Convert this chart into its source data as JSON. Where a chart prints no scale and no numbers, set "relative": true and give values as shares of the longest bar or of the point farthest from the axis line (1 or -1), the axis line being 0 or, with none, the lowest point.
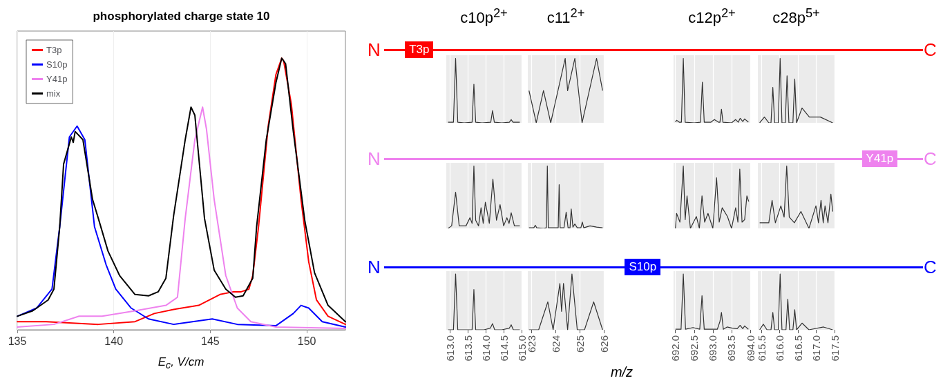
{
  "chart_data": [
    {
      "type": "line",
      "title": "phosphorylated charge state 10",
      "xlabel": "E$_{c}$, V/cm",
      "relative": true,
      "xlim": [
        135,
        152
      ],
      "xticks": [
        135,
        140,
        145,
        150
      ],
      "grid": true,
      "legend": "top left",
      "series": [
        {
          "name": "T3p",
          "color": "#ff0000",
          "x": [
            135,
            136.5,
            139.2,
            141.1,
            142.1,
            143.1,
            144.4,
            145.5,
            146.2,
            146.6,
            147.0,
            147.2,
            147.5,
            148.0,
            148.4,
            148.7,
            148.8,
            149.2,
            149.7,
            150.1,
            150.5,
            151.1,
            152
          ],
          "values": [
            0.03,
            0.03,
            0.02,
            0.03,
            0.06,
            0.075,
            0.09,
            0.13,
            0.14,
            0.14,
            0.15,
            0.2,
            0.38,
            0.75,
            0.94,
            1.0,
            0.99,
            0.83,
            0.48,
            0.25,
            0.11,
            0.05,
            0.02
          ]
        },
        {
          "name": "S10p",
          "color": "#0000ff",
          "x": [
            135,
            136.0,
            136.8,
            137.2,
            137.7,
            138.1,
            138.5,
            139.0,
            139.6,
            140.1,
            140.9,
            141.8,
            143.1,
            145.1,
            146.4,
            148.4,
            149.3,
            149.7,
            150.1,
            150.8,
            152
          ],
          "values": [
            0.05,
            0.08,
            0.15,
            0.38,
            0.71,
            0.75,
            0.7,
            0.38,
            0.24,
            0.15,
            0.08,
            0.04,
            0.02,
            0.04,
            0.02,
            0.015,
            0.06,
            0.09,
            0.08,
            0.03,
            0.01
          ]
        },
        {
          "name": "Y41p",
          "color": "#ee82ee",
          "x": [
            135,
            136.9,
            138.2,
            139.4,
            141.1,
            142.7,
            143.3,
            143.7,
            144.2,
            144.6,
            144.8,
            145.2,
            145.8,
            146.4,
            147.1,
            148.4,
            152
          ],
          "values": [
            0.01,
            0.02,
            0.05,
            0.05,
            0.07,
            0.09,
            0.12,
            0.41,
            0.7,
            0.82,
            0.74,
            0.48,
            0.2,
            0.08,
            0.03,
            0.01,
            0.005
          ]
        },
        {
          "name": "mix",
          "color": "#000000",
          "x": [
            135,
            135.8,
            136.6,
            136.9,
            137.2,
            137.4,
            137.8,
            137.9,
            138.0,
            138.4,
            138.9,
            139.2,
            139.7,
            140.3,
            141.1,
            141.8,
            142.3,
            142.7,
            143.1,
            143.7,
            144.0,
            144.2,
            144.7,
            145.2,
            145.8,
            146.3,
            146.7,
            147.2,
            147.4,
            147.9,
            148.4,
            148.7,
            148.9,
            149.3,
            149.9,
            150.4,
            151.1,
            152
          ],
          "values": [
            0.05,
            0.07,
            0.11,
            0.15,
            0.38,
            0.61,
            0.71,
            0.69,
            0.73,
            0.7,
            0.48,
            0.41,
            0.29,
            0.2,
            0.13,
            0.125,
            0.14,
            0.19,
            0.42,
            0.7,
            0.82,
            0.79,
            0.41,
            0.22,
            0.15,
            0.12,
            0.125,
            0.19,
            0.38,
            0.7,
            0.91,
            1.0,
            0.98,
            0.73,
            0.4,
            0.21,
            0.09,
            0.03
          ]
        }
      ]
    },
    {
      "type": "line",
      "title": "c10p$^{2+}$",
      "annotations": [
        "N",
        "T3p",
        "C"
      ],
      "relative": true,
      "color": "#333333",
      "grid": true,
      "tick_labels": false,
      "xlim": [
        612.9,
        615.0
      ],
      "xticks": [
        613,
        613.5,
        614,
        614.5,
        615
      ],
      "x": [
        612.95,
        613.1,
        613.16,
        613.22,
        613.4,
        613.62,
        613.67,
        613.72,
        613.9,
        614.14,
        614.19,
        614.24,
        614.45,
        614.66,
        614.71,
        614.76,
        614.95
      ],
      "values": [
        0.01,
        0.01,
        1.0,
        0.01,
        0.0,
        0.01,
        0.6,
        0.01,
        0.0,
        0.01,
        0.19,
        0.01,
        0.0,
        0.01,
        0.05,
        0.01,
        0.01
      ]
    },
    {
      "type": "line",
      "title": "c11$^{2+}$",
      "relative": true,
      "color": "#333333",
      "grid": true,
      "tick_labels": false,
      "xlim": [
        622.85,
        626.0
      ],
      "xticks": [
        623,
        624,
        625,
        626
      ],
      "x": [
        622.9,
        623.2,
        623.5,
        623.8,
        624.1,
        624.4,
        624.5,
        624.8,
        625.1,
        625.4,
        625.7,
        625.95
      ],
      "values": [
        0.5,
        0,
        0.5,
        0,
        0.5,
        1,
        0.5,
        1,
        0,
        0.5,
        1,
        0.5
      ]
    },
    {
      "type": "line",
      "title": "c12p$^{2+}$",
      "relative": true,
      "color": "#333333",
      "grid": true,
      "tick_labels": false,
      "xlim": [
        691.95,
        694.0
      ],
      "xticks": [
        692,
        692.5,
        693,
        693.5,
        694
      ],
      "x": [
        692.0,
        692.03,
        692.1,
        692.16,
        692.21,
        692.26,
        692.5,
        692.67,
        692.72,
        692.77,
        692.95,
        693.04,
        693.15,
        693.19,
        693.23,
        693.27,
        693.5,
        693.61,
        693.68,
        693.73,
        693.8,
        693.85,
        693.95
      ],
      "values": [
        0.01,
        0.04,
        0.01,
        0.01,
        1,
        0.01,
        0,
        0.01,
        0.63,
        0.01,
        0.01,
        0.05,
        0.01,
        0.01,
        0.21,
        0.01,
        0,
        0.05,
        0.01,
        0.07,
        0.02,
        0.06,
        0.01
      ]
    },
    {
      "type": "line",
      "title": "c28p$^{5+}$",
      "relative": true,
      "color": "#333333",
      "grid": true,
      "tick_labels": false,
      "xlim": [
        615.4,
        617.5
      ],
      "xticks": [
        615.5,
        616,
        616.5,
        617,
        617.5
      ],
      "x": [
        615.45,
        615.58,
        615.7,
        615.76,
        615.81,
        615.86,
        615.91,
        615.96,
        616.01,
        616.06,
        616.11,
        616.15,
        616.2,
        616.25,
        616.32,
        616.36,
        616.41,
        616.46,
        616.61,
        616.81,
        617.11,
        617.45
      ],
      "values": [
        0,
        0.09,
        0,
        0,
        0.55,
        0,
        0,
        0,
        1,
        0,
        0,
        0,
        0.73,
        0,
        0,
        0,
        0.68,
        0,
        0.23,
        0.09,
        0.09,
        0
      ]
    },
    {
      "type": "line",
      "annotations": [
        "N",
        "Y41p",
        "C"
      ],
      "relative": true,
      "color": "#333333",
      "grid": true,
      "tick_labels": false,
      "xlim": [
        612.9,
        615.0
      ],
      "xticks": [
        613,
        613.5,
        614,
        614.5,
        615
      ],
      "x": [
        612.95,
        613.05,
        613.16,
        613.26,
        613.45,
        613.56,
        613.62,
        613.67,
        613.72,
        613.8,
        613.87,
        613.93,
        613.99,
        614.1,
        614.2,
        614.3,
        614.4,
        614.5,
        614.59,
        614.65,
        614.71,
        614.8,
        614.95
      ],
      "values": [
        0,
        0.04,
        0.58,
        0.04,
        0.04,
        0.17,
        0.08,
        1,
        0.13,
        0.04,
        0.33,
        0.08,
        0.42,
        0.08,
        0.79,
        0.13,
        0.38,
        0.04,
        0.17,
        0.08,
        0.25,
        0.04,
        0.04
      ]
    },
    {
      "type": "line",
      "relative": true,
      "color": "#333333",
      "grid": true,
      "tick_labels": false,
      "xlim": [
        622.85,
        626.0
      ],
      "xticks": [
        623,
        624,
        625,
        626
      ],
      "x": [
        622.9,
        623.1,
        623.16,
        623.22,
        623.5,
        623.62,
        623.66,
        623.7,
        624.0,
        624.11,
        624.15,
        624.19,
        624.35,
        624.44,
        624.52,
        624.6,
        624.65,
        624.72,
        624.8,
        624.9,
        625.05,
        625.11,
        625.17,
        625.43,
        625.7,
        625.95
      ],
      "values": [
        0.01,
        0.01,
        0.05,
        0.01,
        0.0,
        0.01,
        1.0,
        0.01,
        0.01,
        0.01,
        0.7,
        0.01,
        0.01,
        0.26,
        0.01,
        0.01,
        0.31,
        0.02,
        0.07,
        0.01,
        0.01,
        0.1,
        0.01,
        0.04,
        0.02,
        0.01
      ]
    },
    {
      "type": "line",
      "relative": true,
      "color": "#333333",
      "grid": true,
      "tick_labels": false,
      "xlim": [
        691.95,
        694.0
      ],
      "xticks": [
        692,
        692.5,
        693,
        693.5,
        694
      ],
      "x": [
        692.0,
        692.03,
        692.12,
        692.21,
        692.26,
        692.31,
        692.4,
        692.56,
        692.64,
        692.71,
        692.78,
        692.87,
        693.0,
        693.1,
        693.17,
        693.25,
        693.39,
        693.5,
        693.61,
        693.67,
        693.72,
        693.78,
        693.85,
        693.91,
        693.96
      ],
      "values": [
        0,
        0.24,
        0.1,
        1,
        0.14,
        0.52,
        0,
        0.19,
        0,
        0.52,
        0.1,
        0.24,
        0,
        0.81,
        0.1,
        0.33,
        0.19,
        0,
        0.33,
        0.1,
        0.95,
        0.1,
        0.14,
        0.52,
        0.43
      ]
    },
    {
      "type": "line",
      "relative": true,
      "color": "#333333",
      "grid": true,
      "tick_labels": false,
      "xlim": [
        615.4,
        617.5
      ],
      "xticks": [
        615.5,
        616,
        616.5,
        617,
        617.5
      ],
      "x": [
        615.45,
        615.7,
        615.79,
        615.88,
        616.03,
        616.12,
        616.19,
        616.26,
        616.4,
        616.58,
        616.8,
        616.99,
        617.06,
        617.13,
        617.19,
        617.24,
        617.32,
        617.4,
        617.45
      ],
      "values": [
        0.09,
        0.09,
        0.45,
        0.09,
        0.36,
        0.18,
        1,
        0.18,
        0.09,
        0.27,
        0,
        0.36,
        0.09,
        0.45,
        0.09,
        0.36,
        0.09,
        0.55,
        0.27
      ]
    },
    {
      "type": "line",
      "annotations": [
        "N",
        "S10p",
        "C"
      ],
      "relative": true,
      "color": "#333333",
      "grid": true,
      "tick_labels": "x",
      "xlim": [
        612.9,
        615.0
      ],
      "xticks": [
        {
          "value": 613,
          "label": "613.0"
        },
        613.5,
        {
          "value": 614,
          "label": "614.0"
        },
        614.5,
        {
          "value": 615,
          "label": "615.0"
        }
      ],
      "x": [
        612.95,
        613.1,
        613.16,
        613.22,
        613.4,
        613.62,
        613.67,
        613.72,
        613.95,
        614.13,
        614.19,
        614.25,
        614.45,
        614.66,
        614.71,
        614.77,
        614.95
      ],
      "values": [
        0,
        0,
        1,
        0,
        0,
        0,
        0.72,
        0,
        0,
        0.03,
        0.11,
        0,
        0,
        0.03,
        0.09,
        0,
        0
      ]
    },
    {
      "type": "line",
      "xlabel": "m/z",
      "relative": true,
      "color": "#333333",
      "grid": true,
      "tick_labels": "x",
      "xlim": [
        622.85,
        626.0
      ],
      "xticks": [
        623,
        624,
        625,
        626
      ],
      "x": [
        622.9,
        623.3,
        623.68,
        623.9,
        624.18,
        624.25,
        624.33,
        624.5,
        624.68,
        624.9,
        625.2,
        625.58,
        625.95
      ],
      "values": [
        0,
        0,
        0.5,
        0,
        0.83,
        0.33,
        0.83,
        0,
        1,
        0,
        0,
        0.5,
        0
      ]
    },
    {
      "type": "line",
      "relative": true,
      "color": "#333333",
      "grid": true,
      "tick_labels": "x",
      "xlim": [
        691.95,
        694.0
      ],
      "xticks": [
        {
          "value": 692,
          "label": "692.0"
        },
        692.5,
        {
          "value": 693,
          "label": "693.0"
        },
        693.5,
        {
          "value": 694,
          "label": "694.0"
        }
      ],
      "x": [
        692.0,
        692.15,
        692.21,
        692.27,
        692.47,
        692.65,
        692.71,
        692.77,
        693.12,
        693.19,
        693.23,
        693.28,
        693.38,
        693.52,
        693.65,
        693.73,
        693.8,
        693.85,
        693.95
      ],
      "values": [
        0.01,
        0.01,
        1.0,
        0.01,
        0.04,
        0.01,
        0.61,
        0.01,
        0.01,
        0.15,
        0.31,
        0.01,
        0.05,
        0.03,
        0.02,
        0.08,
        0.02,
        0.07,
        0.01
      ]
    },
    {
      "type": "line",
      "relative": true,
      "color": "#333333",
      "grid": true,
      "tick_labels": "x",
      "xlim": [
        615.4,
        617.5
      ],
      "xticks": [
        615.5,
        {
          "value": 616,
          "label": "616.0"
        },
        616.5,
        {
          "value": 617,
          "label": "617.0"
        },
        617.5
      ],
      "x": [
        615.45,
        615.55,
        615.65,
        615.76,
        615.81,
        615.86,
        615.96,
        616.01,
        616.06,
        616.17,
        616.22,
        616.27,
        616.36,
        616.41,
        616.46,
        616.61,
        616.8,
        617.2,
        617.45
      ],
      "values": [
        0,
        0.1,
        0,
        0,
        0.31,
        0,
        0,
        1,
        0,
        0,
        0.55,
        0,
        0,
        0.36,
        0,
        0.12,
        0,
        0.05,
        0
      ]
    }
  ]
}
